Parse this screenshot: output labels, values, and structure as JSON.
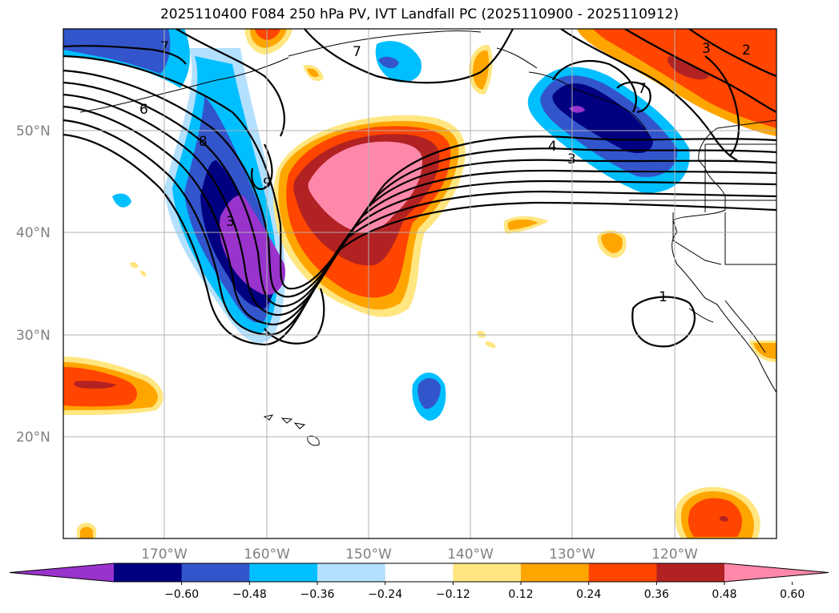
{
  "title": "2025110400 F084 250 hPa PV, IVT Landfall PC (2025110900 - 2025110912)",
  "lat_labels": [
    "50°N",
    "40°N",
    "30°N",
    "20°N"
  ],
  "lon_labels": [
    "170°W",
    "160°W",
    "150°W",
    "140°W",
    "130°W",
    "120°W"
  ],
  "colorbar": {
    "ticks": [
      "−0.60",
      "−0.48",
      "−0.36",
      "−0.24",
      "−0.12",
      "0.12",
      "0.24",
      "0.36",
      "0.48",
      "0.60"
    ],
    "colors": [
      "#9933cc",
      "#000080",
      "#3355cc",
      "#00bfff",
      "#b3e0ff",
      "#ffffff",
      "#ffe680",
      "#ffa500",
      "#ff4500",
      "#b22222",
      "#ff88aa"
    ]
  },
  "contour_labels": [
    "7",
    "6",
    "8",
    "9",
    "3",
    "7",
    "2",
    "3",
    "7",
    "4",
    "3",
    "1"
  ]
}
